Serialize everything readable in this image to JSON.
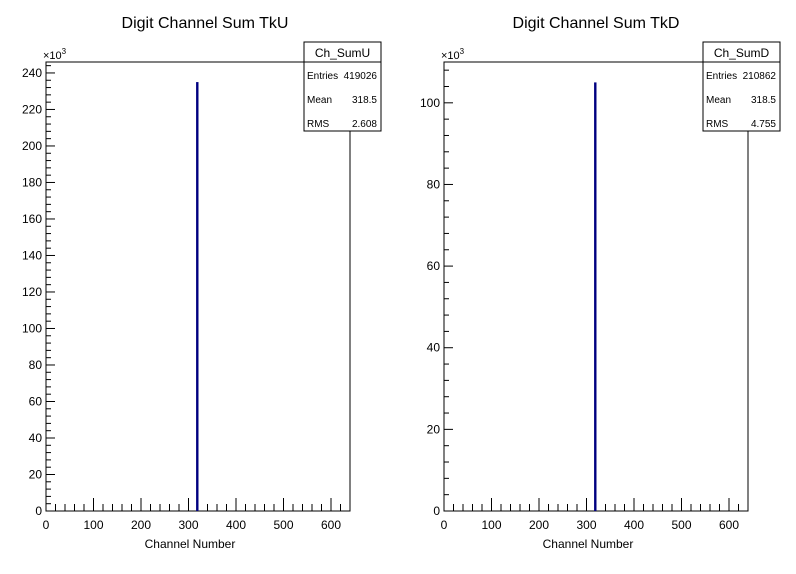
{
  "chart_data": [
    {
      "type": "bar",
      "title": "Digit Channel Sum TkU",
      "xlabel": "Channel Number",
      "ylabel": "",
      "y_multiplier_label": "×10",
      "y_multiplier_exp": "3",
      "xlim": [
        0,
        640
      ],
      "ylim": [
        0,
        246
      ],
      "xticks": [
        "0",
        "100",
        "200",
        "300",
        "400",
        "500",
        "600"
      ],
      "yticks": [
        "0",
        "20",
        "40",
        "60",
        "80",
        "100",
        "120",
        "140",
        "160",
        "180",
        "200",
        "220",
        "240"
      ],
      "x": [
        318.5
      ],
      "values": [
        235
      ],
      "bar_color": "#000080",
      "stats": {
        "name": "Ch_SumU",
        "rows": [
          {
            "label": "Entries",
            "value": "419026"
          },
          {
            "label": "Mean",
            "value": "318.5"
          },
          {
            "label": "RMS",
            "value": "2.608"
          }
        ]
      }
    },
    {
      "type": "bar",
      "title": "Digit Channel Sum TkD",
      "xlabel": "Channel Number",
      "ylabel": "",
      "y_multiplier_label": "×10",
      "y_multiplier_exp": "3",
      "xlim": [
        0,
        640
      ],
      "ylim": [
        0,
        110
      ],
      "xticks": [
        "0",
        "100",
        "200",
        "300",
        "400",
        "500",
        "600"
      ],
      "yticks": [
        "0",
        "20",
        "40",
        "60",
        "80",
        "100"
      ],
      "x": [
        318.5
      ],
      "values": [
        105
      ],
      "bar_color": "#000080",
      "stats": {
        "name": "Ch_SumD",
        "rows": [
          {
            "label": "Entries",
            "value": "210862"
          },
          {
            "label": "Mean",
            "value": "318.5"
          },
          {
            "label": "RMS",
            "value": "4.755"
          }
        ]
      }
    }
  ]
}
